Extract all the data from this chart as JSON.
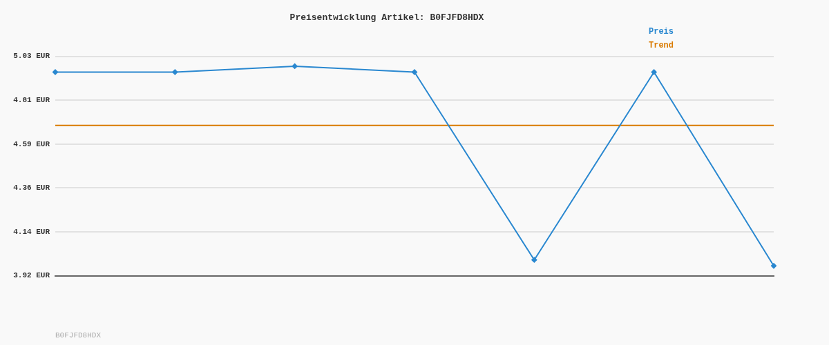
{
  "chart_data": {
    "type": "line",
    "title": "Preisentwicklung Artikel: B0FJFD8HDX",
    "categories": [
      null,
      null,
      null,
      null,
      null,
      null,
      null
    ],
    "series": [
      {
        "name": "Preis",
        "color": "#2a88d0",
        "values": [
          4.95,
          4.95,
          4.98,
          4.95,
          4.0,
          4.95,
          3.97
        ],
        "marker": "diamond"
      },
      {
        "name": "Trend",
        "color": "#d97a00",
        "values": [
          4.68,
          4.68,
          4.68,
          4.68,
          4.68,
          4.68,
          4.68
        ],
        "marker": "none"
      }
    ],
    "ylim": [
      3.92,
      5.03
    ],
    "yticks": [
      {
        "value": 3.92,
        "label": "3.92 EUR"
      },
      {
        "value": 4.142,
        "label": "4.14 EUR"
      },
      {
        "value": 4.364,
        "label": "4.36 EUR"
      },
      {
        "value": 4.586,
        "label": "4.59 EUR"
      },
      {
        "value": 4.808,
        "label": "4.81 EUR"
      },
      {
        "value": 5.03,
        "label": "5.03 EUR"
      }
    ],
    "grid": "y",
    "legend": "top right",
    "line_style": "solid",
    "annotations": [
      "B0FJFD8HDX"
    ]
  }
}
